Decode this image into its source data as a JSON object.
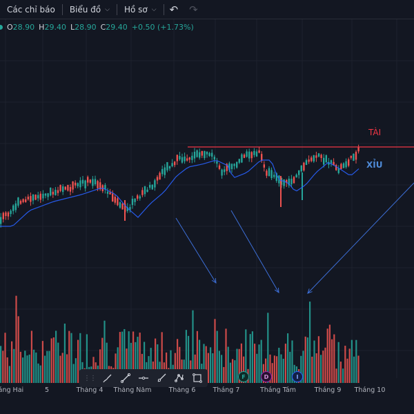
{
  "toolbar": {
    "indicators_label": "Các chỉ báo",
    "chart_type_label": "Biểu đồ",
    "profile_label": "Hồ sơ"
  },
  "ohlc": {
    "open_label": "O",
    "open": "28.90",
    "high_label": "H",
    "high": "29.40",
    "low_label": "L",
    "low": "28.90",
    "close_label": "C",
    "close": "29.40",
    "change": "+0.50 (+1.73%)"
  },
  "annotations": {
    "tai": "TÀI",
    "xiu": "XỈU"
  },
  "x_axis": [
    "Tháng Hai",
    "5",
    "Tháng 4",
    "Tháng Năm",
    "Tháng 6",
    "Tháng 7",
    "Tháng Tám",
    "Tháng 9",
    "Tháng 10"
  ],
  "events": [
    {
      "letter": "F",
      "color": "#26a69a"
    },
    {
      "letter": "D",
      "color": "#9c27b0"
    },
    {
      "letter": "I",
      "color": "#2962ff"
    }
  ],
  "colors": {
    "up": "#26a69a",
    "down": "#ef5350",
    "ma": "#2962ff",
    "resistance": "#f23645"
  }
}
